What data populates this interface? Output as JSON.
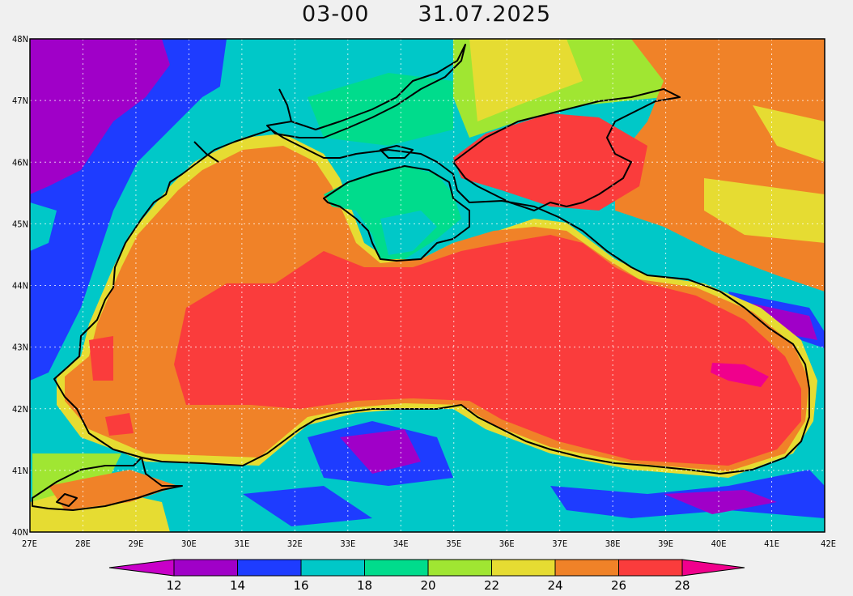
{
  "title": {
    "time": "03-00",
    "date": "31.07.2025"
  },
  "map": {
    "lat_labels": [
      "48N",
      "47N",
      "46N",
      "45N",
      "44N",
      "43N",
      "42N",
      "41N",
      "40N"
    ],
    "lon_labels": [
      "27E",
      "28E",
      "29E",
      "30E",
      "31E",
      "32E",
      "33E",
      "34E",
      "35E",
      "36E",
      "37E",
      "38E",
      "39E",
      "40E",
      "41E",
      "42E"
    ],
    "lat_range": [
      40,
      48
    ],
    "lon_range": [
      27,
      42
    ]
  },
  "colorbar": {
    "labels": [
      "12",
      "14",
      "16",
      "18",
      "20",
      "22",
      "24",
      "26",
      "28"
    ],
    "colors": [
      "#a000c8",
      "#1e3cff",
      "#00c8c8",
      "#00dc8c",
      "#a0e632",
      "#e6dc32",
      "#f08228",
      "#fa3c3c"
    ],
    "under_color": "#c800c8",
    "over_color": "#f0008c"
  },
  "palette": {
    "c12": "#a000c8",
    "c14": "#1e3cff",
    "c16": "#00c8c8",
    "c18": "#00dc8c",
    "c20": "#a0e632",
    "c22": "#e6dc32",
    "c24": "#f08228",
    "c26": "#fa3c3c",
    "c28": "#f0008c"
  }
}
